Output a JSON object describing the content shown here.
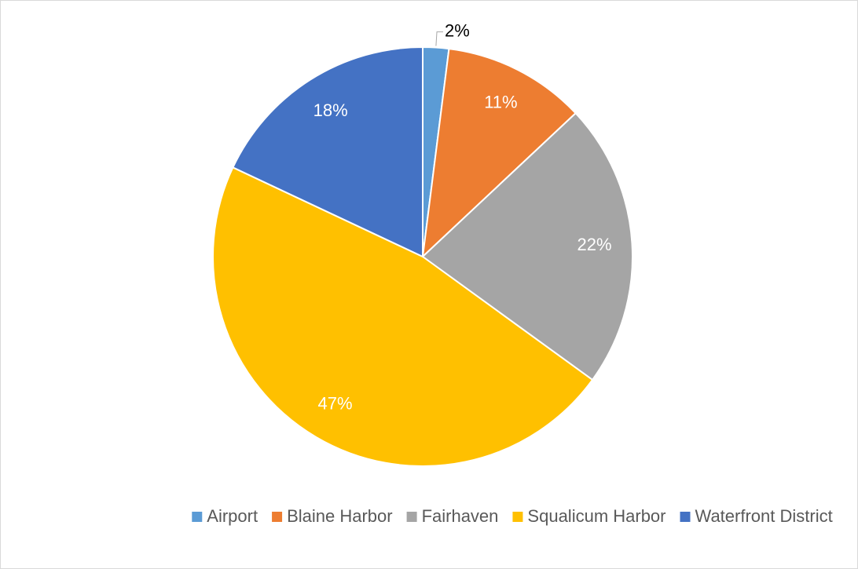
{
  "chart_data": {
    "type": "pie",
    "categories": [
      "Airport",
      "Blaine Harbor",
      "Fairhaven",
      "Squalicum Harbor",
      "Waterfront District"
    ],
    "values": [
      2,
      11,
      22,
      47,
      18
    ],
    "value_labels": [
      "2%",
      "11%",
      "22%",
      "47%",
      "18%"
    ],
    "colors": [
      "#5b9bd5",
      "#ed7d31",
      "#a5a5a5",
      "#ffc000",
      "#4472c4"
    ],
    "legend": "bottom"
  }
}
